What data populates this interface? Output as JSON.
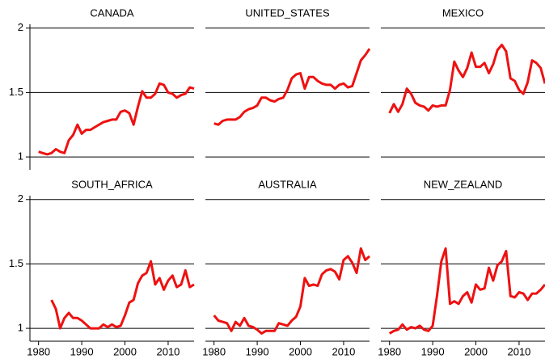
{
  "chart_data": [
    {
      "type": "line",
      "title": "CANADA",
      "color": "#ee1111",
      "x": [
        1980,
        1981,
        1982,
        1983,
        1984,
        1985,
        1986,
        1987,
        1988,
        1989,
        1990,
        1991,
        1992,
        1993,
        1994,
        1995,
        1996,
        1997,
        1998,
        1999,
        2000,
        2001,
        2002,
        2003,
        2004,
        2005,
        2006,
        2007,
        2008,
        2009,
        2010,
        2011,
        2012,
        2013,
        2014,
        2015,
        2016
      ],
      "values": [
        1.04,
        1.03,
        1.02,
        1.03,
        1.06,
        1.04,
        1.03,
        1.13,
        1.17,
        1.25,
        1.18,
        1.21,
        1.21,
        1.23,
        1.25,
        1.27,
        1.28,
        1.29,
        1.29,
        1.35,
        1.36,
        1.34,
        1.25,
        1.39,
        1.51,
        1.46,
        1.46,
        1.49,
        1.57,
        1.56,
        1.5,
        1.49,
        1.46,
        1.48,
        1.49,
        1.54,
        1.53
      ],
      "xlim": [
        1978,
        2016
      ],
      "ylim": [
        0.9,
        2.03
      ],
      "yticks": [
        1,
        1.5,
        2
      ]
    },
    {
      "type": "line",
      "title": "UNITED_STATES",
      "color": "#ee1111",
      "x": [
        1980,
        1981,
        1982,
        1983,
        1984,
        1985,
        1986,
        1987,
        1988,
        1989,
        1990,
        1991,
        1992,
        1993,
        1994,
        1995,
        1996,
        1997,
        1998,
        1999,
        2000,
        2001,
        2002,
        2003,
        2004,
        2005,
        2006,
        2007,
        2008,
        2009,
        2010,
        2011,
        2012,
        2013,
        2014,
        2015,
        2016
      ],
      "values": [
        1.26,
        1.25,
        1.28,
        1.29,
        1.29,
        1.29,
        1.31,
        1.35,
        1.37,
        1.38,
        1.4,
        1.46,
        1.46,
        1.44,
        1.43,
        1.45,
        1.46,
        1.52,
        1.61,
        1.64,
        1.65,
        1.53,
        1.62,
        1.62,
        1.59,
        1.57,
        1.56,
        1.56,
        1.53,
        1.56,
        1.57,
        1.54,
        1.55,
        1.65,
        1.75,
        1.79,
        1.84
      ],
      "xlim": [
        1978,
        2016
      ],
      "ylim": [
        0.9,
        2.03
      ],
      "yticks": [
        1,
        1.5,
        2
      ]
    },
    {
      "type": "line",
      "title": "MEXICO",
      "color": "#ee1111",
      "x": [
        1980,
        1981,
        1982,
        1983,
        1984,
        1985,
        1986,
        1987,
        1988,
        1989,
        1990,
        1991,
        1992,
        1993,
        1994,
        1995,
        1996,
        1997,
        1998,
        1999,
        2000,
        2001,
        2002,
        2003,
        2004,
        2005,
        2006,
        2007,
        2008,
        2009,
        2010,
        2011,
        2012,
        2013,
        2014,
        2015,
        2016
      ],
      "values": [
        1.34,
        1.41,
        1.35,
        1.41,
        1.53,
        1.49,
        1.42,
        1.4,
        1.39,
        1.36,
        1.4,
        1.39,
        1.4,
        1.4,
        1.52,
        1.74,
        1.67,
        1.62,
        1.69,
        1.81,
        1.7,
        1.7,
        1.73,
        1.65,
        1.72,
        1.83,
        1.87,
        1.82,
        1.61,
        1.59,
        1.52,
        1.49,
        1.58,
        1.75,
        1.73,
        1.69,
        1.57
      ],
      "xlim": [
        1978,
        2016
      ],
      "ylim": [
        0.9,
        2.03
      ],
      "yticks": [
        1,
        1.5,
        2
      ]
    },
    {
      "type": "line",
      "title": "SOUTH_AFRICA",
      "color": "#ee1111",
      "x": [
        1980,
        1981,
        1982,
        1983,
        1984,
        1985,
        1986,
        1987,
        1988,
        1989,
        1990,
        1991,
        1992,
        1993,
        1994,
        1995,
        1996,
        1997,
        1998,
        1999,
        2000,
        2001,
        2002,
        2003,
        2004,
        2005,
        2006,
        2007,
        2008,
        2009,
        2010,
        2011,
        2012,
        2013,
        2014,
        2015,
        2016
      ],
      "values": [
        null,
        null,
        null,
        1.22,
        1.15,
        1.0,
        1.08,
        1.12,
        1.08,
        1.08,
        1.06,
        1.03,
        1.0,
        1.0,
        1.0,
        1.03,
        1.01,
        1.03,
        1.01,
        1.02,
        1.1,
        1.2,
        1.22,
        1.35,
        1.41,
        1.43,
        1.52,
        1.34,
        1.39,
        1.3,
        1.37,
        1.41,
        1.32,
        1.34,
        1.45,
        1.32,
        1.34
      ],
      "xlim": [
        1978,
        2016
      ],
      "ylim": [
        0.9,
        2.03
      ],
      "yticks": [
        1,
        1.5,
        2
      ],
      "xticks": [
        1980,
        1990,
        2000,
        2010
      ]
    },
    {
      "type": "line",
      "title": "AUSTRALIA",
      "color": "#ee1111",
      "x": [
        1980,
        1981,
        1982,
        1983,
        1984,
        1985,
        1986,
        1987,
        1988,
        1989,
        1990,
        1991,
        1992,
        1993,
        1994,
        1995,
        1996,
        1997,
        1998,
        1999,
        2000,
        2001,
        2002,
        2003,
        2004,
        2005,
        2006,
        2007,
        2008,
        2009,
        2010,
        2011,
        2012,
        2013,
        2014,
        2015,
        2016
      ],
      "values": [
        1.1,
        1.06,
        1.05,
        1.04,
        0.98,
        1.05,
        1.02,
        1.08,
        1.02,
        1.01,
        0.99,
        0.96,
        0.98,
        0.98,
        0.98,
        1.04,
        1.03,
        1.02,
        1.06,
        1.09,
        1.17,
        1.39,
        1.33,
        1.34,
        1.33,
        1.42,
        1.45,
        1.46,
        1.44,
        1.38,
        1.53,
        1.56,
        1.51,
        1.43,
        1.62,
        1.53,
        1.56
      ],
      "xlim": [
        1978,
        2016
      ],
      "ylim": [
        0.9,
        2.03
      ],
      "yticks": [
        1,
        1.5,
        2
      ],
      "xticks": [
        1980,
        1990,
        2000,
        2010
      ]
    },
    {
      "type": "line",
      "title": "NEW_ZEALAND",
      "color": "#ee1111",
      "x": [
        1980,
        1981,
        1982,
        1983,
        1984,
        1985,
        1986,
        1987,
        1988,
        1989,
        1990,
        1991,
        1992,
        1993,
        1994,
        1995,
        1996,
        1997,
        1998,
        1999,
        2000,
        2001,
        2002,
        2003,
        2004,
        2005,
        2006,
        2007,
        2008,
        2009,
        2010,
        2011,
        2012,
        2013,
        2014,
        2015,
        2016
      ],
      "values": [
        0.96,
        0.98,
        0.99,
        1.03,
        0.99,
        1.01,
        1.0,
        1.02,
        0.99,
        0.98,
        1.02,
        1.25,
        1.52,
        1.62,
        1.19,
        1.21,
        1.19,
        1.25,
        1.28,
        1.2,
        1.34,
        1.3,
        1.31,
        1.47,
        1.37,
        1.49,
        1.52,
        1.6,
        1.25,
        1.24,
        1.28,
        1.27,
        1.22,
        1.27,
        1.27,
        1.3,
        1.34
      ],
      "xlim": [
        1978,
        2016
      ],
      "ylim": [
        0.9,
        2.03
      ],
      "yticks": [
        1,
        1.5,
        2
      ],
      "xticks": [
        1980,
        1990,
        2000,
        2010
      ]
    }
  ]
}
